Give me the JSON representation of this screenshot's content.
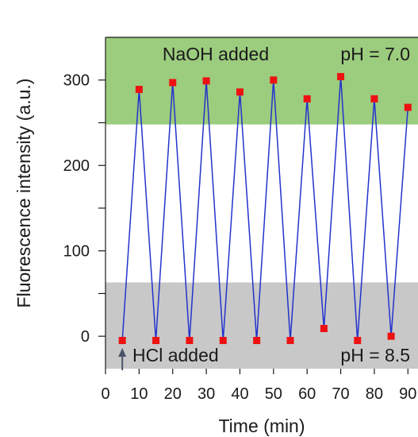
{
  "chart_data": {
    "type": "line",
    "title": "",
    "xlabel": "Time (min)",
    "ylabel": "Fluorescence intensity (a.u.)",
    "xlim": [
      0,
      93
    ],
    "ylim": [
      -38,
      350
    ],
    "xticks": [
      0,
      10,
      20,
      30,
      40,
      50,
      60,
      70,
      80,
      90
    ],
    "yticks_major": [
      0,
      100,
      200,
      300
    ],
    "yticks_minor": [
      50,
      150,
      250
    ],
    "grid": false,
    "legend": "none",
    "series": [
      {
        "x": [
          5,
          10,
          15,
          20,
          25,
          30,
          35,
          40,
          45,
          50,
          55,
          60,
          65,
          70,
          75,
          80,
          85,
          90
        ],
        "values": [
          -5,
          289,
          -5,
          297,
          -5,
          299,
          -5,
          286,
          -5,
          300,
          -5,
          278,
          9,
          304,
          -5,
          278,
          0,
          268
        ],
        "line_color": "#2233cc",
        "marker_color": "#ee1111"
      }
    ],
    "bands": [
      {
        "label": "NaOH added",
        "note": "pH = 7.0",
        "y_from": 248,
        "y_to": 350,
        "color": "#9ccc7e"
      },
      {
        "label": "HCl added",
        "note": "pH = 8.5",
        "y_from": -38,
        "y_to": 63,
        "color": "#c8c8c8"
      }
    ],
    "arrow": {
      "x": 5,
      "color": "#4a5468"
    }
  }
}
